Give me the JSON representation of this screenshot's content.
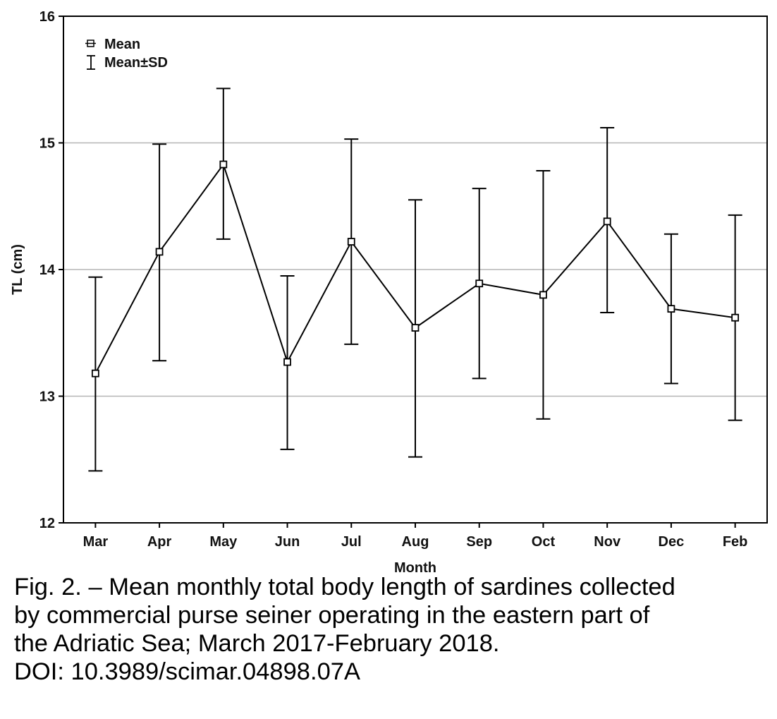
{
  "chart_data": {
    "type": "line",
    "xlabel": "Month",
    "ylabel": "TL (cm)",
    "categories": [
      "Mar",
      "Apr",
      "May",
      "Jun",
      "Jul",
      "Aug",
      "Sep",
      "Oct",
      "Nov",
      "Dec",
      "Feb"
    ],
    "series": [
      {
        "name": "Mean",
        "values": [
          13.18,
          14.14,
          14.83,
          13.27,
          14.22,
          13.54,
          13.89,
          13.8,
          14.38,
          13.69,
          13.62
        ],
        "sd_low": [
          12.41,
          13.28,
          14.24,
          12.58,
          13.41,
          12.52,
          13.14,
          12.82,
          13.66,
          13.1,
          12.81
        ],
        "sd_high": [
          13.94,
          14.99,
          15.43,
          13.95,
          15.03,
          14.55,
          14.64,
          14.78,
          15.12,
          14.28,
          14.43
        ]
      }
    ],
    "ylim": [
      12,
      16
    ],
    "yticks": [
      12,
      13,
      14,
      15,
      16
    ],
    "grid": "horizontal",
    "legend": {
      "position": "top-left",
      "entries": [
        "Mean",
        "Mean±SD"
      ]
    }
  },
  "caption": {
    "lines": [
      "Fig. 2. – Mean monthly total body length of sardines collected",
      "by commercial purse seiner operating in the eastern part of",
      "the Adriatic Sea; March 2017-February 2018.",
      "DOI: 10.3989/scimar.04898.07A"
    ]
  }
}
